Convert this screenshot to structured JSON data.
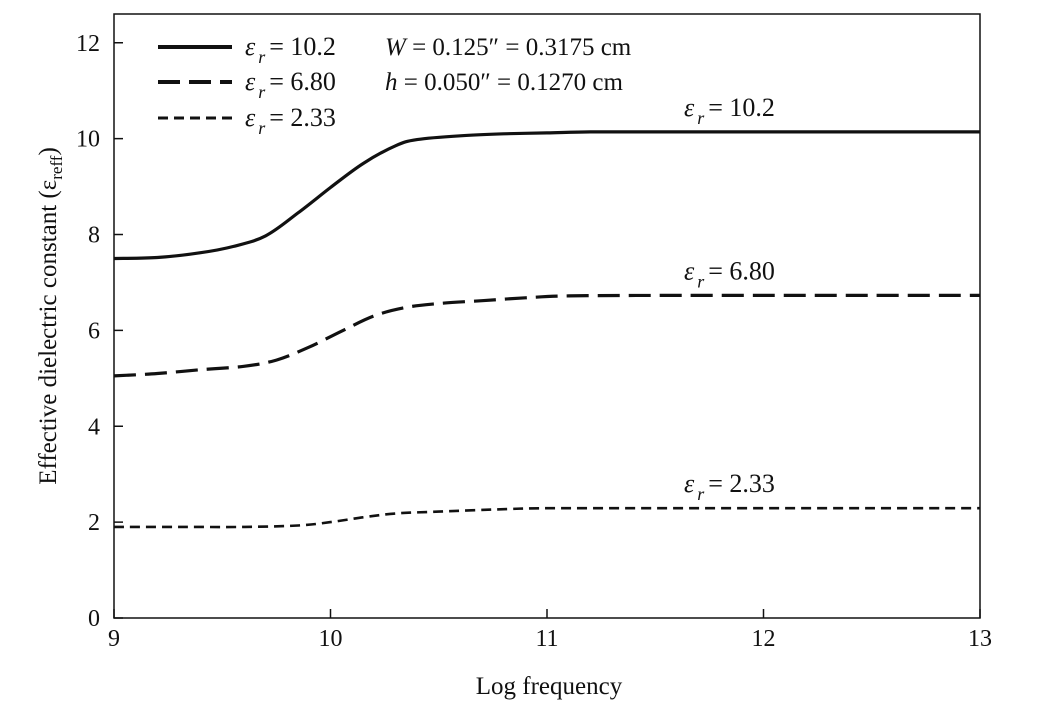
{
  "chart_data": {
    "type": "line",
    "xlabel": "Log frequency",
    "ylabel_main": "Effective dielectric constant (ε",
    "ylabel_sub": "reff",
    "ylabel_close": ")",
    "xlim": [
      9,
      13
    ],
    "ylim": [
      0,
      12.6
    ],
    "xticks": [
      9,
      10,
      11,
      12,
      13
    ],
    "yticks": [
      0,
      2,
      4,
      6,
      8,
      10,
      12
    ],
    "grid": false,
    "legend_placement": "top-left",
    "eps_symbol": "ε",
    "eps_sub": "r",
    "legend_entries": [
      {
        "value": "= 10.2",
        "line_style": "solid"
      },
      {
        "value": "= 6.80",
        "line_style": "long-dash"
      },
      {
        "value": "= 2.33",
        "line_style": "short-dash"
      }
    ],
    "notes": [
      {
        "var": "W",
        "text": " = 0.125″ = 0.3175 cm"
      },
      {
        "var": "h",
        "text": " = 0.050″ = 0.1270 cm"
      }
    ],
    "series": [
      {
        "curve_label": "= 10.2",
        "line_style": "solid",
        "x": [
          9.0,
          9.2,
          9.4,
          9.55,
          9.7,
          9.85,
          10.0,
          10.15,
          10.3,
          10.4,
          10.6,
          10.8,
          11.0,
          11.2,
          11.5,
          12.0,
          12.5,
          13.0
        ],
        "y": [
          7.5,
          7.52,
          7.62,
          7.75,
          7.97,
          8.45,
          8.98,
          9.48,
          9.85,
          9.98,
          10.06,
          10.1,
          10.12,
          10.14,
          10.14,
          10.14,
          10.14,
          10.14
        ]
      },
      {
        "curve_label": "= 6.80",
        "line_style": "long-dash",
        "x": [
          9.0,
          9.2,
          9.4,
          9.6,
          9.75,
          9.9,
          10.05,
          10.2,
          10.35,
          10.5,
          10.7,
          10.9,
          11.1,
          11.5,
          12.0,
          12.5,
          13.0
        ],
        "y": [
          5.05,
          5.1,
          5.18,
          5.25,
          5.38,
          5.65,
          5.98,
          6.3,
          6.48,
          6.56,
          6.62,
          6.68,
          6.72,
          6.73,
          6.73,
          6.73,
          6.73
        ]
      },
      {
        "curve_label": "= 2.33",
        "line_style": "short-dash",
        "x": [
          9.0,
          9.3,
          9.6,
          9.85,
          10.0,
          10.15,
          10.3,
          10.5,
          10.8,
          11.0,
          11.5,
          12.0,
          12.5,
          13.0
        ],
        "y": [
          1.9,
          1.9,
          1.9,
          1.93,
          2.0,
          2.1,
          2.18,
          2.22,
          2.27,
          2.29,
          2.29,
          2.29,
          2.29,
          2.29
        ]
      }
    ]
  }
}
